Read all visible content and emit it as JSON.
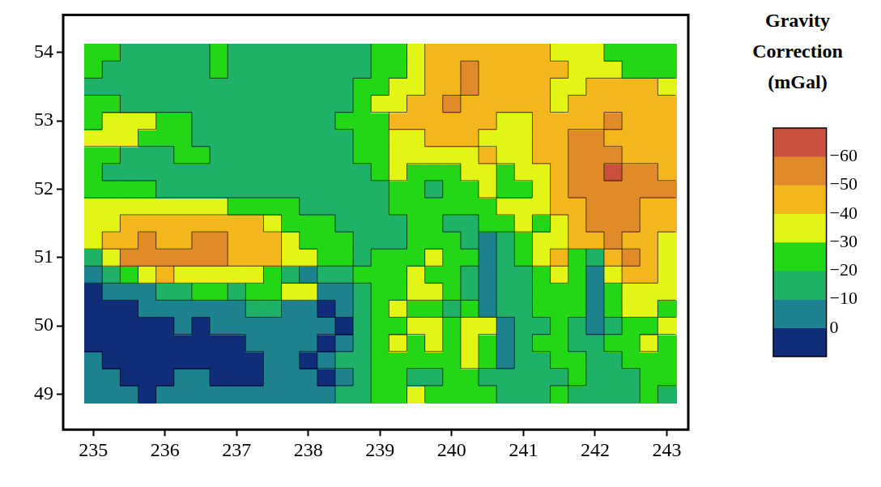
{
  "chart_data": {
    "type": "heatmap",
    "x": [
      235,
      235.25,
      235.5,
      235.75,
      236,
      236.25,
      236.5,
      236.75,
      237,
      237.25,
      237.5,
      237.75,
      238,
      238.25,
      238.5,
      238.75,
      239,
      239.25,
      239.5,
      239.75,
      240,
      240.25,
      240.5,
      240.75,
      241,
      241.25,
      241.5,
      241.75,
      242,
      242.25,
      242.5,
      242.75,
      243
    ],
    "y": [
      49,
      49.25,
      49.5,
      49.75,
      50,
      50.25,
      50.5,
      50.75,
      51,
      51.25,
      51.5,
      51.75,
      52,
      52.25,
      52.5,
      52.75,
      53,
      53.25,
      53.5,
      53.75,
      54
    ],
    "z": [
      [
        -3,
        -5,
        -2,
        3,
        -3,
        -5,
        -6,
        -5,
        -4,
        -3,
        -5,
        -6,
        -5,
        -8,
        -12,
        -15,
        -22,
        -28,
        -32,
        -30,
        -28,
        -25,
        -22,
        -18,
        -18,
        -20,
        -22,
        -20,
        -18,
        -18,
        -20,
        -22,
        -20
      ],
      [
        -3,
        -2,
        3,
        4,
        2,
        -3,
        -5,
        3,
        4,
        2,
        -3,
        -5,
        -3,
        3,
        -8,
        -15,
        -22,
        -25,
        -20,
        -18,
        -22,
        -25,
        -18,
        -12,
        -15,
        -18,
        -20,
        -22,
        -18,
        -15,
        -18,
        -22,
        -22
      ],
      [
        -3,
        3,
        4,
        5,
        4,
        3,
        4,
        3,
        2,
        3,
        -2,
        -5,
        3,
        -5,
        -12,
        -20,
        -28,
        -25,
        -22,
        -28,
        -30,
        -35,
        -30,
        -10,
        -18,
        -20,
        -22,
        -25,
        -18,
        -20,
        -25,
        -28,
        -25
      ],
      [
        4,
        5,
        5,
        4,
        3,
        2,
        3,
        4,
        2,
        -2,
        -5,
        -3,
        -2,
        0,
        -5,
        -15,
        -25,
        -32,
        -28,
        -35,
        -30,
        -32,
        -30,
        -8,
        -18,
        -22,
        -25,
        -20,
        -15,
        -22,
        -30,
        -32,
        -28
      ],
      [
        4,
        5,
        3,
        2,
        1,
        -3,
        2,
        -5,
        -8,
        -10,
        -6,
        -8,
        -5,
        -3,
        3,
        -15,
        -22,
        -30,
        -35,
        -32,
        -28,
        -35,
        -38,
        -8,
        -18,
        -20,
        -25,
        -15,
        -8,
        -20,
        -28,
        -30,
        -32
      ],
      [
        3,
        4,
        2,
        -3,
        -5,
        -2,
        -6,
        -8,
        -10,
        -12,
        -15,
        -10,
        -5,
        2,
        -5,
        -18,
        -30,
        -32,
        -28,
        -22,
        -18,
        -30,
        -8,
        -15,
        -18,
        -22,
        -25,
        -28,
        -8,
        -22,
        -32,
        -35,
        -30
      ],
      [
        3,
        -2,
        -8,
        -10,
        -15,
        -18,
        -25,
        -28,
        -20,
        -22,
        -30,
        -32,
        -35,
        -3,
        -8,
        -20,
        -25,
        -28,
        -35,
        -35,
        -25,
        -15,
        -5,
        -15,
        -20,
        -25,
        -30,
        -28,
        -5,
        -30,
        -38,
        -40,
        -35
      ],
      [
        -2,
        -15,
        -30,
        -40,
        -42,
        -40,
        -35,
        -35,
        -38,
        -32,
        -28,
        -20,
        -5,
        -15,
        -20,
        -22,
        -25,
        -28,
        -35,
        -30,
        -25,
        -15,
        -5,
        -12,
        -20,
        -30,
        -35,
        -25,
        -8,
        -35,
        -45,
        -42,
        -38
      ],
      [
        -12,
        -40,
        -55,
        -58,
        -55,
        -52,
        -55,
        -55,
        -50,
        -48,
        -45,
        -40,
        -35,
        -28,
        -22,
        -20,
        -22,
        -25,
        -30,
        -35,
        -28,
        -22,
        -8,
        -15,
        -25,
        -40,
        -42,
        -30,
        -15,
        -45,
        -52,
        -48,
        -40
      ],
      [
        -35,
        -45,
        -50,
        -52,
        -50,
        -50,
        -52,
        -55,
        -50,
        -45,
        -42,
        -38,
        -30,
        -25,
        -22,
        -18,
        -18,
        -20,
        -25,
        -28,
        -22,
        -15,
        -10,
        -20,
        -30,
        -38,
        -32,
        -45,
        -50,
        -55,
        -50,
        -45,
        -40
      ],
      [
        -38,
        -40,
        -42,
        -45,
        -45,
        -48,
        -50,
        -50,
        -45,
        -42,
        -35,
        -30,
        -28,
        -22,
        -18,
        -16,
        -15,
        -18,
        -22,
        -25,
        -18,
        -15,
        -22,
        -30,
        -38,
        -30,
        -35,
        -48,
        -52,
        -55,
        -52,
        -48,
        -45
      ],
      [
        -35,
        -38,
        -40,
        -38,
        -36,
        -38,
        -35,
        -32,
        -30,
        -28,
        -26,
        -22,
        -18,
        -15,
        -14,
        -15,
        -20,
        -22,
        -25,
        -22,
        -22,
        -28,
        -30,
        -35,
        -40,
        -35,
        -42,
        -50,
        -55,
        -55,
        -52,
        -50,
        -48
      ],
      [
        -30,
        -28,
        -25,
        -22,
        -18,
        -16,
        -15,
        -15,
        -15,
        -14,
        -13,
        -12,
        -12,
        -13,
        -15,
        -18,
        -20,
        -22,
        -22,
        -20,
        -22,
        -30,
        -32,
        -28,
        -30,
        -38,
        -45,
        -52,
        -58,
        -60,
        -58,
        -55,
        -52
      ],
      [
        -22,
        -20,
        -18,
        -16,
        -15,
        -15,
        -15,
        -15,
        -14,
        -14,
        -13,
        -12,
        -12,
        -13,
        -16,
        -20,
        -28,
        -32,
        -28,
        -25,
        -30,
        -35,
        -32,
        -30,
        -35,
        -40,
        -48,
        -55,
        -58,
        -62,
        -55,
        -52,
        -50
      ],
      [
        -22,
        -22,
        -20,
        -20,
        -20,
        -22,
        -22,
        -20,
        -18,
        -15,
        -13,
        -12,
        -12,
        -14,
        -18,
        -22,
        -30,
        -35,
        -40,
        -38,
        -35,
        -40,
        -42,
        -38,
        -35,
        -45,
        -50,
        -55,
        -55,
        -52,
        -50,
        -48,
        -48
      ],
      [
        -32,
        -35,
        -35,
        -30,
        -25,
        -22,
        -20,
        -18,
        -15,
        -13,
        -12,
        -12,
        -13,
        -15,
        -18,
        -22,
        -30,
        -38,
        -40,
        -42,
        -45,
        -42,
        -40,
        -38,
        -40,
        -45,
        -50,
        -52,
        -52,
        -50,
        -48,
        -48,
        -45
      ],
      [
        -25,
        -32,
        -35,
        -35,
        -28,
        -22,
        -18,
        -16,
        -15,
        -14,
        -13,
        -14,
        -18,
        -20,
        -22,
        -25,
        -30,
        -42,
        -45,
        -48,
        -45,
        -42,
        -42,
        -40,
        -38,
        -42,
        -45,
        -48,
        -50,
        -52,
        -50,
        -48,
        -45
      ],
      [
        -22,
        -22,
        -20,
        -18,
        -16,
        -15,
        -15,
        -15,
        -13,
        -13,
        -13,
        -13,
        -14,
        -16,
        -20,
        -25,
        -32,
        -40,
        -45,
        -50,
        -52,
        -50,
        -48,
        -45,
        -45,
        -42,
        -40,
        -42,
        -48,
        -50,
        -48,
        -45,
        -42
      ],
      [
        -20,
        -18,
        -15,
        -15,
        -14,
        -14,
        -16,
        -18,
        -14,
        -13,
        -13,
        -13,
        -14,
        -15,
        -18,
        -22,
        -28,
        -32,
        -40,
        -48,
        -50,
        -52,
        -50,
        -48,
        -47,
        -45,
        -40,
        -38,
        -42,
        -45,
        -45,
        -42,
        -38
      ],
      [
        -22,
        -20,
        -16,
        -15,
        -15,
        -15,
        -18,
        -22,
        -16,
        -15,
        -15,
        -15,
        -15,
        -15,
        -15,
        -18,
        -25,
        -30,
        -38,
        -45,
        -48,
        -52,
        -48,
        -45,
        -47,
        -45,
        -42,
        -38,
        -35,
        -32,
        -30,
        -28,
        -25
      ],
      [
        -22,
        -22,
        -18,
        -16,
        -15,
        -15,
        -18,
        -22,
        -15,
        -15,
        -15,
        -15,
        -15,
        -15,
        -15,
        -18,
        -22,
        -28,
        -35,
        -42,
        -45,
        -48,
        -45,
        -42,
        -45,
        -44,
        -40,
        -35,
        -32,
        -28,
        -30,
        -25,
        -22
      ]
    ],
    "xlim": [
      234.58,
      243.3
    ],
    "ylim": [
      48.48,
      54.55
    ],
    "xticks": [
      235,
      236,
      237,
      238,
      239,
      240,
      241,
      242,
      243
    ],
    "yticks": [
      49,
      50,
      51,
      52,
      53,
      54
    ],
    "grid": false,
    "colorbar": {
      "title": "Gravity Correction (mGal)",
      "range": [
        -70,
        10
      ],
      "levels": [
        -70,
        -60,
        -50,
        -40,
        -30,
        -20,
        -10,
        0,
        10
      ],
      "colors": [
        "#c8503c",
        "#e08a2a",
        "#f3b71b",
        "#e2f514",
        "#22d816",
        "#1fb168",
        "#1d8290",
        "#0f2d78"
      ],
      "ticks": [
        {
          "value": -60,
          "label": "−60"
        },
        {
          "value": -50,
          "label": "−50"
        },
        {
          "value": -40,
          "label": "−40"
        },
        {
          "value": -30,
          "label": "−30"
        },
        {
          "value": -20,
          "label": "−20"
        },
        {
          "value": -10,
          "label": "−10"
        },
        0
      ]
    }
  }
}
